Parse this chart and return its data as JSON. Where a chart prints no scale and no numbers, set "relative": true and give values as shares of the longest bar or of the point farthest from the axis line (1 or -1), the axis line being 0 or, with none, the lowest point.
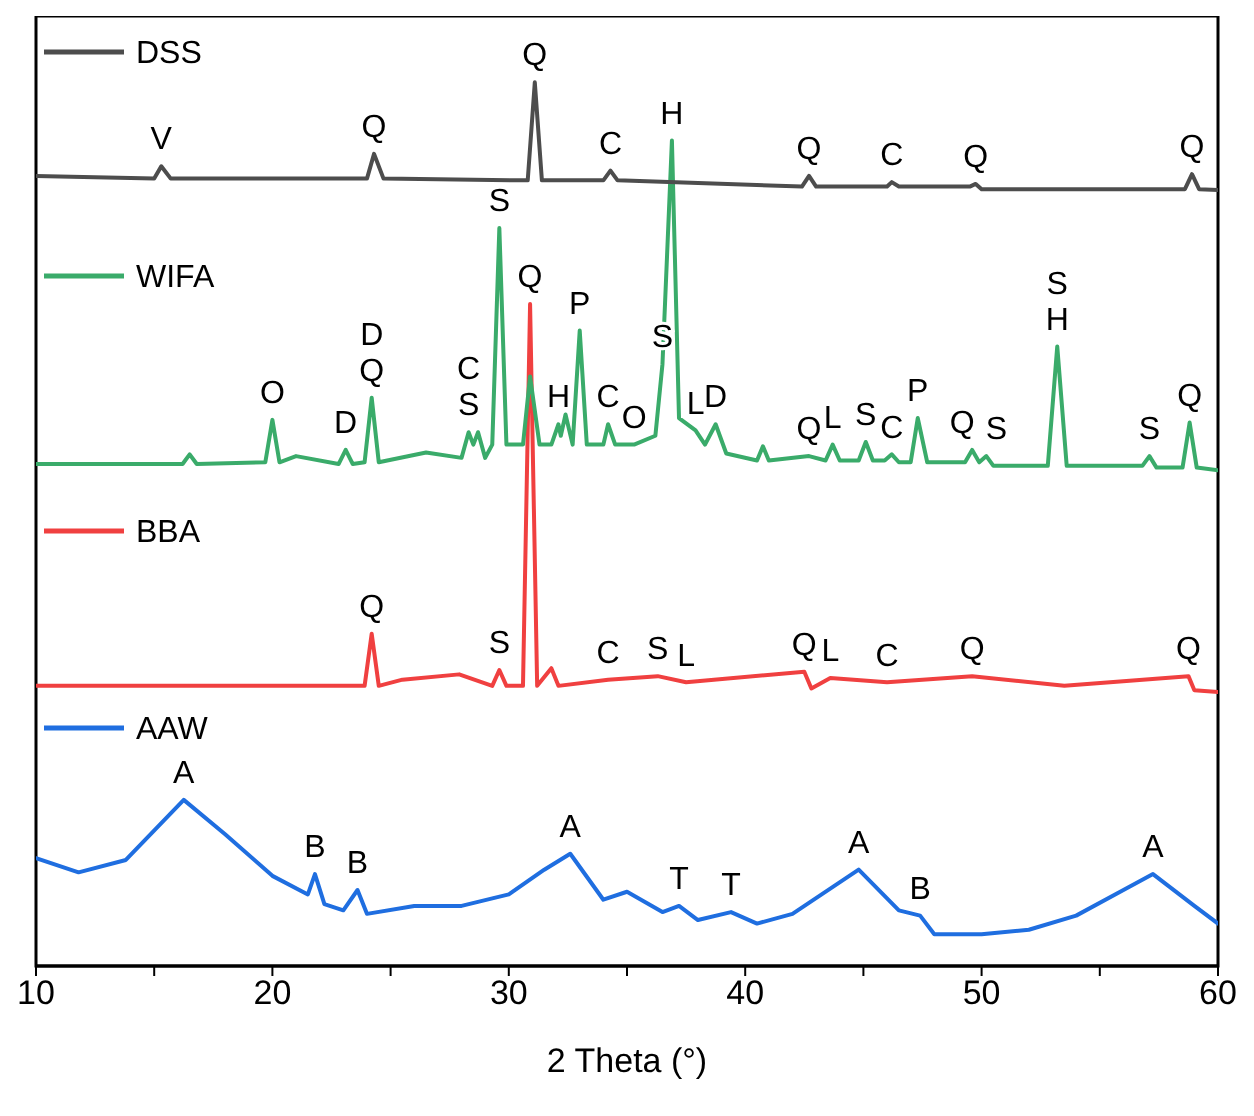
{
  "chart_data": {
    "type": "line",
    "relative": true,
    "xlabel": "2 Theta (°)",
    "xlim": [
      10,
      60
    ],
    "xticks": [
      10,
      {
        "value": 15,
        "label": null
      },
      20,
      {
        "value": 25,
        "label": null
      },
      30,
      {
        "value": 35,
        "label": null
      },
      40,
      {
        "value": 45,
        "label": null
      },
      50,
      {
        "value": 55,
        "label": null
      },
      60
    ],
    "marker": "none",
    "line_style": "solid",
    "legend": "left",
    "series": [
      {
        "name": "DSS",
        "color": "#4d4d4d",
        "x": [
          10,
          15,
          15.3,
          15.7,
          24,
          24.3,
          24.7,
          30.8,
          31.1,
          31.4,
          34,
          34.3,
          34.6,
          42.4,
          42.7,
          43,
          46,
          46.2,
          46.5,
          49.5,
          49.75,
          50,
          58.6,
          58.9,
          59.2,
          60
        ],
        "values": [
          0.894,
          0.891,
          0.905,
          0.891,
          0.891,
          0.919,
          0.891,
          0.889,
          1,
          0.889,
          0.889,
          0.9,
          0.889,
          0.882,
          0.894,
          0.882,
          0.882,
          0.887,
          0.882,
          0.882,
          0.885,
          0.879,
          0.879,
          0.896,
          0.879,
          0.878
        ]
      },
      {
        "name": "WIFA",
        "color": "#3aab6a",
        "x": [
          10,
          16.2,
          16.5,
          16.8,
          19.7,
          20,
          20.3,
          21,
          22.8,
          23.1,
          23.4,
          23.9,
          24.2,
          24.5,
          26.5,
          28,
          28.3,
          28.5,
          28.7,
          29,
          29.3,
          29.6,
          29.9,
          30.6,
          30.9,
          31.3,
          31.8,
          32.1,
          32.2,
          32.4,
          32.7,
          33,
          33.3,
          34,
          34.2,
          34.5,
          35.3,
          36.2,
          36.5,
          36.9,
          37.2,
          37.9,
          38.3,
          38.75,
          39.2,
          40.5,
          40.75,
          41,
          42.7,
          43.4,
          43.7,
          44,
          44.8,
          45.1,
          45.4,
          45.9,
          46.2,
          46.5,
          47,
          47.3,
          47.7,
          49.3,
          49.6,
          49.9,
          50.2,
          50.5,
          52.8,
          53.2,
          53.6,
          56.8,
          57.1,
          57.4,
          58.5,
          58.8,
          59.1,
          60
        ],
        "values": [
          0.568,
          0.568,
          0.579,
          0.568,
          0.57,
          0.618,
          0.57,
          0.577,
          0.568,
          0.584,
          0.568,
          0.57,
          0.643,
          0.57,
          0.581,
          0.575,
          0.604,
          0.59,
          0.604,
          0.575,
          0.59,
          0.835,
          0.59,
          0.59,
          0.667,
          0.59,
          0.59,
          0.613,
          0.6,
          0.624,
          0.59,
          0.719,
          0.59,
          0.59,
          0.613,
          0.59,
          0.59,
          0.6,
          0.681,
          0.934,
          0.62,
          0.606,
          0.59,
          0.613,
          0.58,
          0.572,
          0.588,
          0.572,
          0.577,
          0.572,
          0.59,
          0.572,
          0.572,
          0.593,
          0.572,
          0.572,
          0.579,
          0.57,
          0.57,
          0.62,
          0.57,
          0.57,
          0.584,
          0.57,
          0.577,
          0.566,
          0.566,
          0.701,
          0.566,
          0.566,
          0.577,
          0.564,
          0.564,
          0.615,
          0.564,
          0.561
        ]
      },
      {
        "name": "BBA",
        "color": "#f04040",
        "x": [
          10,
          23.9,
          24.2,
          24.5,
          25.5,
          27.9,
          29.3,
          29.6,
          29.9,
          30.6,
          30.9,
          31.2,
          31.8,
          32.1,
          34.2,
          36.3,
          37.5,
          42.5,
          42.8,
          43.6,
          46,
          49.6,
          53.5,
          58.75,
          59,
          60
        ],
        "values": [
          0.317,
          0.317,
          0.376,
          0.317,
          0.324,
          0.33,
          0.317,
          0.335,
          0.317,
          0.317,
          0.749,
          0.317,
          0.337,
          0.317,
          0.324,
          0.328,
          0.321,
          0.333,
          0.314,
          0.326,
          0.321,
          0.328,
          0.317,
          0.328,
          0.312,
          0.31
        ]
      },
      {
        "name": "AAW",
        "color": "#1f6ee0",
        "x": [
          10,
          11.8,
          13.8,
          16.25,
          18,
          20,
          21.5,
          21.8,
          22.2,
          23,
          23.6,
          24,
          26,
          28,
          30,
          31.5,
          32.6,
          34,
          35,
          36.5,
          37.2,
          38,
          39.4,
          40.5,
          42,
          44.8,
          46.5,
          47.4,
          48,
          50,
          52,
          54,
          56,
          57.25,
          59,
          60
        ],
        "values": [
          0.122,
          0.106,
          0.12,
          0.188,
          0.149,
          0.102,
          0.081,
          0.104,
          0.07,
          0.063,
          0.086,
          0.059,
          0.068,
          0.068,
          0.081,
          0.109,
          0.127,
          0.075,
          0.084,
          0.061,
          0.068,
          0.052,
          0.061,
          0.048,
          0.059,
          0.109,
          0.063,
          0.057,
          0.036,
          0.036,
          0.041,
          0.057,
          0.086,
          0.104,
          0.068,
          0.048
        ]
      }
    ],
    "annotations": [
      {
        "text": "V",
        "x": 15.3,
        "y": 0.905
      },
      {
        "text": "Q",
        "x": 24.3,
        "y": 0.919
      },
      {
        "text": "Q",
        "x": 31.1,
        "y": 1
      },
      {
        "text": "C",
        "x": 34.3,
        "y": 0.9
      },
      {
        "text": "H",
        "x": 36.9,
        "y": 0.934
      },
      {
        "text": "Q",
        "x": 42.7,
        "y": 0.894
      },
      {
        "text": "C",
        "x": 46.2,
        "y": 0.887
      },
      {
        "text": "Q",
        "x": 49.75,
        "y": 0.885
      },
      {
        "text": "Q",
        "x": 58.9,
        "y": 0.896
      },
      {
        "text": "O",
        "x": 20,
        "y": 0.618
      },
      {
        "text": "D",
        "x": 23.1,
        "y": 0.584
      },
      {
        "text": "Q",
        "x": 24.2,
        "y": 0.643
      },
      {
        "text": "D",
        "x": 24.2,
        "y": 0.643
      },
      {
        "text": "S",
        "x": 28.3,
        "y": 0.604
      },
      {
        "text": "C",
        "x": 28.3,
        "y": 0.604
      },
      {
        "text": "S",
        "x": 29.6,
        "y": 0.835
      },
      {
        "text": "Q",
        "x": 30.9,
        "y": 0.749
      },
      {
        "text": "H",
        "x": 32.1,
        "y": 0.613
      },
      {
        "text": "P",
        "x": 33,
        "y": 0.719
      },
      {
        "text": "C",
        "x": 34.2,
        "y": 0.613
      },
      {
        "text": "O",
        "x": 35.3,
        "y": 0.59
      },
      {
        "text": "S",
        "x": 36.5,
        "y": 0.681
      },
      {
        "text": "L",
        "x": 37.9,
        "y": 0.606
      },
      {
        "text": "D",
        "x": 38.75,
        "y": 0.613
      },
      {
        "text": "Q",
        "x": 42.7,
        "y": 0.577
      },
      {
        "text": "L",
        "x": 43.7,
        "y": 0.59
      },
      {
        "text": "S",
        "x": 45.1,
        "y": 0.593
      },
      {
        "text": "C",
        "x": 46.2,
        "y": 0.579
      },
      {
        "text": "P",
        "x": 47.3,
        "y": 0.62
      },
      {
        "text": "Q",
        "x": 49.6,
        "y": 0.584
      },
      {
        "text": "S",
        "x": 50.2,
        "y": 0.577
      },
      {
        "text": "H",
        "x": 53.2,
        "y": 0.701
      },
      {
        "text": "S",
        "x": 53.2,
        "y": 0.701
      },
      {
        "text": "S",
        "x": 57.1,
        "y": 0.577
      },
      {
        "text": "Q",
        "x": 58.8,
        "y": 0.615
      },
      {
        "text": "Q",
        "x": 24.2,
        "y": 0.376
      },
      {
        "text": "S",
        "x": 29.6,
        "y": 0.335
      },
      {
        "text": "C",
        "x": 34.2,
        "y": 0.324
      },
      {
        "text": "S",
        "x": 36.3,
        "y": 0.328
      },
      {
        "text": "L",
        "x": 37.5,
        "y": 0.321
      },
      {
        "text": "Q",
        "x": 42.5,
        "y": 0.333
      },
      {
        "text": "L",
        "x": 43.6,
        "y": 0.326
      },
      {
        "text": "C",
        "x": 46,
        "y": 0.321
      },
      {
        "text": "Q",
        "x": 49.6,
        "y": 0.328
      },
      {
        "text": "Q",
        "x": 58.75,
        "y": 0.328
      },
      {
        "text": "A",
        "x": 16.25,
        "y": 0.188
      },
      {
        "text": "B",
        "x": 21.8,
        "y": 0.104
      },
      {
        "text": "B",
        "x": 23.6,
        "y": 0.086
      },
      {
        "text": "A",
        "x": 32.6,
        "y": 0.127
      },
      {
        "text": "T",
        "x": 37.2,
        "y": 0.068
      },
      {
        "text": "T",
        "x": 39.4,
        "y": 0.061
      },
      {
        "text": "A",
        "x": 44.8,
        "y": 0.109
      },
      {
        "text": "B",
        "x": 47.4,
        "y": 0.057
      },
      {
        "text": "A",
        "x": 57.25,
        "y": 0.104
      }
    ]
  }
}
